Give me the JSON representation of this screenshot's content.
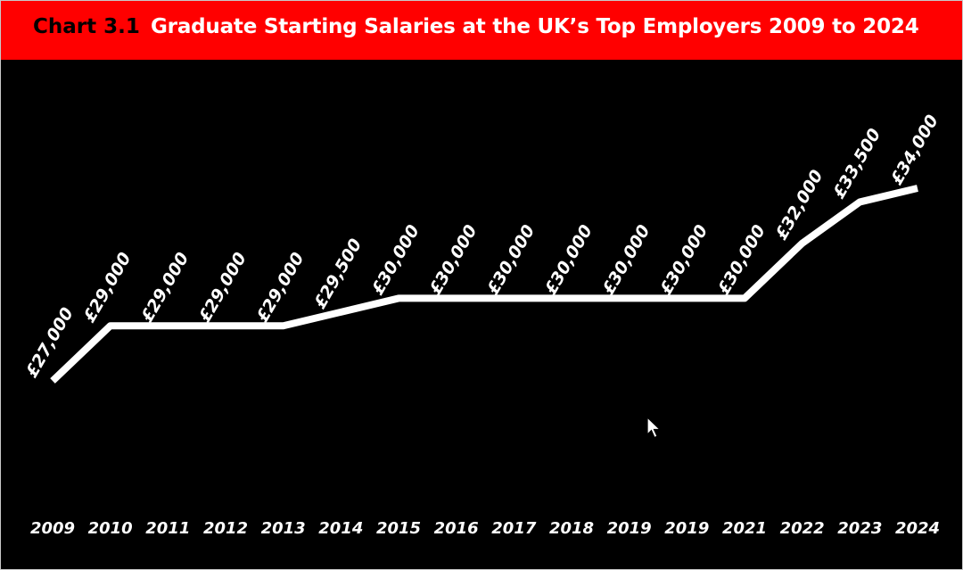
{
  "header": {
    "chart_number": "Chart 3.1",
    "title": "Graduate Starting Salaries at the UK’s Top Employers 2009 to 2024"
  },
  "colors": {
    "title_bar": "#ff0000",
    "background": "#000000",
    "line": "#ffffff",
    "chart_number_text": "#000000"
  },
  "chart_data": {
    "type": "line",
    "title": "Graduate Starting Salaries at the UK’s Top Employers 2009 to 2024",
    "xlabel": "",
    "ylabel": "",
    "categories": [
      "2009",
      "2010",
      "2011",
      "2012",
      "2013",
      "2014",
      "2015",
      "2016",
      "2017",
      "2018",
      "2019",
      "2019",
      "2021",
      "2022",
      "2023",
      "2024"
    ],
    "series": [
      {
        "values": [
          27000,
          29000,
          29000,
          29000,
          29000,
          29500,
          30000,
          30000,
          30000,
          30000,
          30000,
          30000,
          30000,
          32000,
          33500,
          34000
        ],
        "labels": [
          "£27,000",
          "£29,000",
          "£29,000",
          "£29,000",
          "£29,000",
          "£29,500",
          "£30,000",
          "£30,000",
          "£30,000",
          "£30,000",
          "£30,000",
          "£30,000",
          "£30,000",
          "£32,000",
          "£33,500",
          "£34,000"
        ]
      }
    ],
    "grid": false,
    "legend": "none",
    "axes_visible": false
  },
  "cursor_icon": "arrow-cursor-icon"
}
